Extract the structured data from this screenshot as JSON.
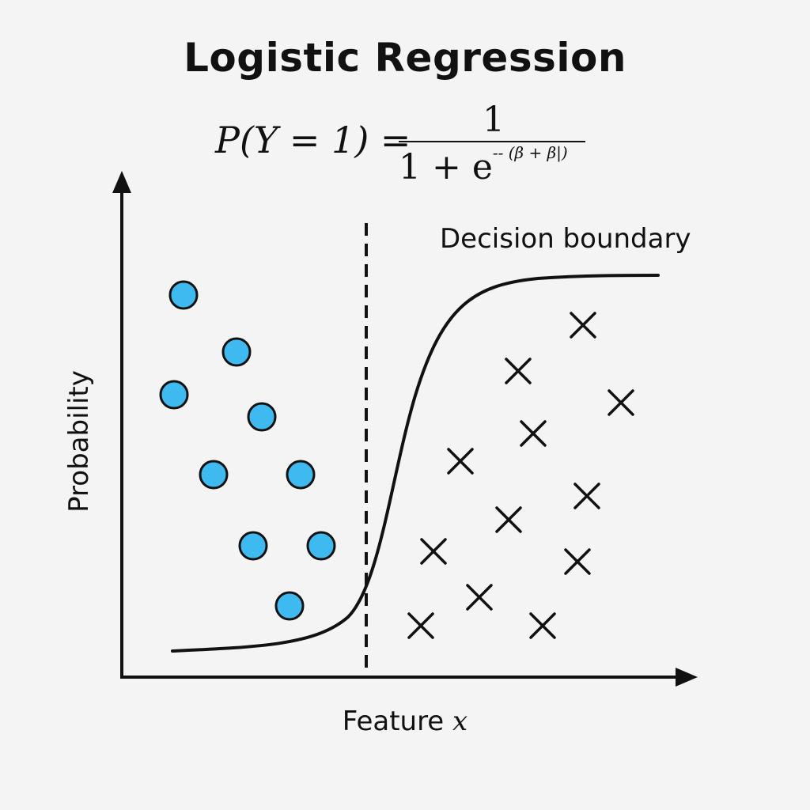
{
  "title": "Logistic Regression",
  "formula": {
    "lhs": "P(Y = 1) =",
    "numerator": "1",
    "denominator_base": "1 + e",
    "exponent": "-- (β + β|)"
  },
  "annotations": {
    "decision_boundary": "Decision boundary"
  },
  "axes": {
    "x_label": "Feature",
    "x_variable": "x",
    "y_label": "Probability"
  },
  "colors": {
    "circle_fill": "#3fbaf0",
    "stroke": "#111111",
    "background": "#f4f4f4"
  },
  "legend": {
    "class0_marker": "circle",
    "class1_marker": "cross"
  }
}
